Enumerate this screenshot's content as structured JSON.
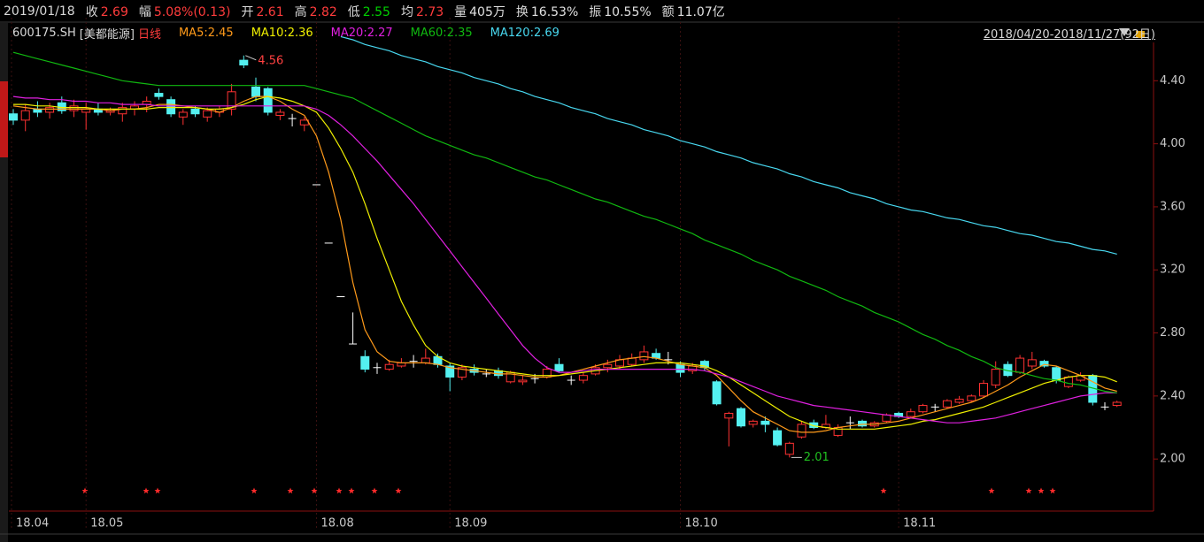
{
  "header": {
    "date": "2019/01/18",
    "items": [
      {
        "label": "收",
        "value": "2.69",
        "color": "#ff3c3c"
      },
      {
        "label": "幅",
        "value": "5.08%(0.13)",
        "color": "#ff3c3c"
      },
      {
        "label": "开",
        "value": "2.61",
        "color": "#ff3c3c"
      },
      {
        "label": "高",
        "value": "2.82",
        "color": "#ff3c3c"
      },
      {
        "label": "低",
        "value": "2.55",
        "color": "#00d000"
      },
      {
        "label": "均",
        "value": "2.73",
        "color": "#ff3c3c"
      },
      {
        "label": "量",
        "value": "405万",
        "color": "#e0e0e0"
      },
      {
        "label": "换",
        "value": "16.53%",
        "color": "#e0e0e0"
      },
      {
        "label": "振",
        "value": "10.55%",
        "color": "#e0e0e0"
      },
      {
        "label": "额",
        "value": "11.07亿",
        "color": "#e0e0e0"
      }
    ]
  },
  "chart_data": {
    "type": "candlestick",
    "code": "600175.SH",
    "name": "[美都能源]",
    "period": "日线",
    "range": "2018/04/20-2018/11/27(92日)",
    "up_color": "#ff3232",
    "down_color": "#54f0f0",
    "flat_color": "#ffffff",
    "high_label": 4.56,
    "low_label": 2.01,
    "categories": [
      "18.04",
      null,
      null,
      null,
      null,
      null,
      "18.05",
      null,
      null,
      null,
      null,
      null,
      null,
      null,
      null,
      null,
      null,
      null,
      null,
      null,
      null,
      null,
      null,
      null,
      null,
      "18.08",
      null,
      null,
      null,
      null,
      null,
      null,
      null,
      null,
      null,
      null,
      "18.09",
      null,
      null,
      null,
      null,
      null,
      null,
      null,
      null,
      null,
      null,
      null,
      null,
      null,
      null,
      null,
      null,
      null,
      null,
      "18.10",
      null,
      null,
      null,
      null,
      null,
      null,
      null,
      null,
      null,
      null,
      null,
      null,
      null,
      null,
      null,
      null,
      null,
      "18.11",
      null,
      null,
      null,
      null,
      null,
      null,
      null,
      null,
      null,
      null,
      null,
      null,
      null,
      null,
      null,
      null,
      null,
      null
    ],
    "open": [
      4.19,
      4.15,
      4.22,
      4.2,
      4.26,
      4.21,
      4.2,
      4.22,
      4.2,
      4.19,
      4.22,
      4.25,
      4.32,
      4.28,
      4.17,
      4.22,
      4.17,
      4.2,
      4.22,
      4.53,
      4.36,
      4.35,
      4.18,
      4.16,
      4.12,
      3.74,
      3.37,
      3.03,
      2.73,
      2.65,
      2.58,
      2.57,
      2.59,
      2.62,
      2.61,
      2.65,
      2.59,
      2.52,
      2.57,
      2.54,
      2.56,
      2.49,
      2.49,
      2.51,
      2.52,
      2.6,
      2.5,
      2.5,
      2.54,
      2.58,
      2.59,
      2.6,
      2.63,
      2.67,
      2.63,
      2.6,
      2.56,
      2.62,
      2.49,
      2.26,
      2.32,
      2.22,
      2.24,
      2.18,
      2.03,
      2.14,
      2.23,
      2.2,
      2.15,
      2.23,
      2.24,
      2.21,
      2.24,
      2.29,
      2.27,
      2.3,
      2.33,
      2.33,
      2.36,
      2.37,
      2.4,
      2.47,
      2.6,
      2.55,
      2.59,
      2.62,
      2.58,
      2.46,
      2.5,
      2.53,
      2.33,
      2.34
    ],
    "high": [
      4.22,
      4.25,
      4.27,
      4.26,
      4.3,
      4.28,
      4.26,
      4.26,
      4.23,
      4.26,
      4.27,
      4.3,
      4.35,
      4.3,
      4.22,
      4.24,
      4.23,
      4.24,
      4.38,
      4.56,
      4.42,
      4.36,
      4.22,
      4.19,
      4.17,
      3.74,
      3.37,
      3.03,
      2.93,
      2.69,
      2.61,
      2.63,
      2.64,
      2.66,
      2.7,
      2.67,
      2.61,
      2.6,
      2.6,
      2.57,
      2.58,
      2.56,
      2.53,
      2.54,
      2.59,
      2.64,
      2.53,
      2.55,
      2.6,
      2.63,
      2.66,
      2.67,
      2.72,
      2.7,
      2.68,
      2.62,
      2.61,
      2.63,
      2.5,
      2.3,
      2.33,
      2.25,
      2.27,
      2.2,
      2.11,
      2.24,
      2.25,
      2.28,
      2.22,
      2.27,
      2.25,
      2.24,
      2.29,
      2.3,
      2.32,
      2.35,
      2.35,
      2.38,
      2.4,
      2.41,
      2.5,
      2.62,
      2.62,
      2.66,
      2.68,
      2.63,
      2.59,
      2.53,
      2.55,
      2.54,
      2.36,
      2.37
    ],
    "low": [
      4.12,
      4.08,
      4.17,
      4.16,
      4.19,
      4.17,
      4.09,
      4.18,
      4.18,
      4.14,
      4.18,
      4.2,
      4.28,
      4.17,
      4.12,
      4.17,
      4.14,
      4.17,
      4.18,
      4.48,
      4.27,
      4.18,
      4.15,
      4.11,
      4.08,
      3.74,
      3.37,
      3.03,
      2.73,
      2.55,
      2.54,
      2.56,
      2.58,
      2.58,
      2.6,
      2.58,
      2.43,
      2.5,
      2.53,
      2.52,
      2.51,
      2.48,
      2.47,
      2.48,
      2.51,
      2.55,
      2.47,
      2.48,
      2.53,
      2.55,
      2.57,
      2.59,
      2.61,
      2.63,
      2.6,
      2.52,
      2.54,
      2.56,
      2.34,
      2.08,
      2.2,
      2.2,
      2.17,
      2.08,
      2.01,
      2.13,
      2.19,
      2.19,
      2.14,
      2.19,
      2.2,
      2.2,
      2.23,
      2.26,
      2.26,
      2.29,
      2.3,
      2.32,
      2.35,
      2.36,
      2.39,
      2.45,
      2.52,
      2.54,
      2.57,
      2.58,
      2.48,
      2.45,
      2.49,
      2.34,
      2.31,
      2.33
    ],
    "close": [
      4.15,
      4.21,
      4.2,
      4.23,
      4.21,
      4.24,
      4.22,
      4.2,
      4.21,
      4.23,
      4.24,
      4.27,
      4.3,
      4.19,
      4.2,
      4.19,
      4.21,
      4.22,
      4.33,
      4.5,
      4.3,
      4.2,
      4.2,
      4.16,
      4.15,
      3.74,
      3.37,
      3.03,
      2.73,
      2.57,
      2.58,
      2.6,
      2.61,
      2.62,
      2.64,
      2.6,
      2.52,
      2.58,
      2.55,
      2.54,
      2.53,
      2.55,
      2.5,
      2.51,
      2.57,
      2.56,
      2.5,
      2.53,
      2.58,
      2.6,
      2.63,
      2.64,
      2.68,
      2.64,
      2.63,
      2.55,
      2.59,
      2.58,
      2.35,
      2.29,
      2.21,
      2.24,
      2.22,
      2.09,
      2.1,
      2.22,
      2.2,
      2.22,
      2.2,
      2.23,
      2.21,
      2.23,
      2.28,
      2.27,
      2.3,
      2.34,
      2.33,
      2.37,
      2.38,
      2.4,
      2.48,
      2.57,
      2.53,
      2.64,
      2.63,
      2.59,
      2.5,
      2.52,
      2.53,
      2.36,
      2.33,
      2.36
    ],
    "series": [
      {
        "name": "MA5:2.45",
        "color": "#ff9a1a",
        "values": [
          4.24,
          4.23,
          4.22,
          4.22,
          4.22,
          4.22,
          4.22,
          4.22,
          4.21,
          4.22,
          4.22,
          4.23,
          4.25,
          4.25,
          4.24,
          4.23,
          4.22,
          4.2,
          4.23,
          4.27,
          4.3,
          4.3,
          4.27,
          4.22,
          4.18,
          4.05,
          3.82,
          3.52,
          3.12,
          2.82,
          2.68,
          2.62,
          2.61,
          2.61,
          2.61,
          2.6,
          2.58,
          2.57,
          2.56,
          2.55,
          2.54,
          2.54,
          2.53,
          2.52,
          2.52,
          2.53,
          2.55,
          2.57,
          2.59,
          2.61,
          2.63,
          2.64,
          2.65,
          2.64,
          2.62,
          2.6,
          2.59,
          2.58,
          2.53,
          2.45,
          2.37,
          2.3,
          2.26,
          2.22,
          2.18,
          2.17,
          2.17,
          2.18,
          2.2,
          2.21,
          2.22,
          2.22,
          2.23,
          2.24,
          2.26,
          2.28,
          2.3,
          2.32,
          2.34,
          2.36,
          2.39,
          2.43,
          2.47,
          2.52,
          2.56,
          2.6,
          2.59,
          2.56,
          2.53,
          2.49,
          2.45,
          2.43
        ]
      },
      {
        "name": "MA10:2.36",
        "color": "#f0f000",
        "values": [
          4.25,
          4.25,
          4.24,
          4.24,
          4.23,
          4.23,
          4.23,
          4.22,
          4.22,
          4.22,
          4.22,
          4.22,
          4.23,
          4.23,
          4.23,
          4.23,
          4.22,
          4.22,
          4.23,
          4.25,
          4.28,
          4.3,
          4.29,
          4.27,
          4.24,
          4.2,
          4.1,
          3.97,
          3.82,
          3.62,
          3.4,
          3.2,
          3.0,
          2.85,
          2.72,
          2.65,
          2.61,
          2.59,
          2.58,
          2.57,
          2.56,
          2.55,
          2.54,
          2.53,
          2.53,
          2.53,
          2.54,
          2.55,
          2.56,
          2.57,
          2.58,
          2.59,
          2.6,
          2.61,
          2.61,
          2.61,
          2.6,
          2.59,
          2.56,
          2.52,
          2.47,
          2.42,
          2.37,
          2.32,
          2.27,
          2.24,
          2.21,
          2.2,
          2.19,
          2.19,
          2.19,
          2.19,
          2.2,
          2.21,
          2.22,
          2.24,
          2.25,
          2.27,
          2.29,
          2.31,
          2.33,
          2.36,
          2.39,
          2.42,
          2.45,
          2.48,
          2.5,
          2.52,
          2.53,
          2.53,
          2.52,
          2.49
        ]
      },
      {
        "name": "MA20:2.27",
        "color": "#e020e0",
        "values": [
          4.3,
          4.29,
          4.29,
          4.28,
          4.28,
          4.27,
          4.27,
          4.26,
          4.26,
          4.25,
          4.25,
          4.25,
          4.24,
          4.24,
          4.24,
          4.24,
          4.24,
          4.24,
          4.24,
          4.24,
          4.24,
          4.24,
          4.24,
          4.24,
          4.24,
          4.22,
          4.18,
          4.12,
          4.05,
          3.97,
          3.89,
          3.8,
          3.71,
          3.62,
          3.52,
          3.42,
          3.32,
          3.22,
          3.12,
          3.02,
          2.92,
          2.82,
          2.72,
          2.64,
          2.58,
          2.55,
          2.55,
          2.56,
          2.57,
          2.57,
          2.57,
          2.57,
          2.57,
          2.57,
          2.57,
          2.57,
          2.57,
          2.56,
          2.54,
          2.52,
          2.49,
          2.46,
          2.43,
          2.4,
          2.38,
          2.36,
          2.34,
          2.33,
          2.32,
          2.31,
          2.3,
          2.29,
          2.28,
          2.27,
          2.26,
          2.25,
          2.24,
          2.23,
          2.23,
          2.24,
          2.25,
          2.26,
          2.28,
          2.3,
          2.32,
          2.34,
          2.36,
          2.38,
          2.4,
          2.41,
          2.42,
          2.42
        ]
      },
      {
        "name": "MA60:2.35",
        "color": "#10b810",
        "values": [
          4.58,
          4.56,
          4.54,
          4.52,
          4.5,
          4.48,
          4.46,
          4.44,
          4.42,
          4.4,
          4.39,
          4.38,
          4.37,
          4.37,
          4.37,
          4.37,
          4.37,
          4.37,
          4.37,
          4.37,
          4.37,
          4.37,
          4.37,
          4.37,
          4.37,
          4.35,
          4.33,
          4.31,
          4.29,
          4.25,
          4.21,
          4.17,
          4.13,
          4.09,
          4.05,
          4.02,
          3.99,
          3.96,
          3.93,
          3.91,
          3.88,
          3.85,
          3.82,
          3.79,
          3.77,
          3.74,
          3.71,
          3.68,
          3.65,
          3.63,
          3.6,
          3.57,
          3.54,
          3.52,
          3.49,
          3.46,
          3.43,
          3.39,
          3.36,
          3.33,
          3.3,
          3.26,
          3.23,
          3.2,
          3.16,
          3.13,
          3.1,
          3.07,
          3.03,
          3.0,
          2.97,
          2.93,
          2.9,
          2.87,
          2.83,
          2.79,
          2.76,
          2.72,
          2.69,
          2.65,
          2.62,
          2.58,
          2.56,
          2.55,
          2.53,
          2.51,
          2.5,
          2.48,
          2.47,
          2.45,
          2.43,
          2.42
        ]
      },
      {
        "name": "MA120:2.69",
        "color": "#48d8f0",
        "values": [
          null,
          null,
          null,
          null,
          null,
          null,
          null,
          null,
          null,
          null,
          null,
          null,
          null,
          null,
          null,
          null,
          null,
          null,
          null,
          null,
          null,
          null,
          null,
          null,
          null,
          null,
          null,
          4.68,
          4.66,
          4.63,
          4.61,
          4.59,
          4.56,
          4.54,
          4.52,
          4.49,
          4.47,
          4.45,
          4.42,
          4.4,
          4.38,
          4.35,
          4.33,
          4.3,
          4.28,
          4.26,
          4.23,
          4.21,
          4.19,
          4.16,
          4.14,
          4.12,
          4.09,
          4.07,
          4.05,
          4.02,
          4.0,
          3.98,
          3.95,
          3.93,
          3.91,
          3.88,
          3.86,
          3.84,
          3.81,
          3.79,
          3.76,
          3.74,
          3.72,
          3.69,
          3.67,
          3.65,
          3.62,
          3.6,
          3.58,
          3.57,
          3.55,
          3.53,
          3.52,
          3.5,
          3.48,
          3.47,
          3.45,
          3.43,
          3.42,
          3.4,
          3.38,
          3.37,
          3.35,
          3.33,
          3.32,
          3.3
        ]
      }
    ],
    "ylim": [
      1.67,
      4.8
    ],
    "yticks": [
      {
        "value": 2.0,
        "label": "2.00"
      },
      {
        "value": 2.4,
        "label": "2.40"
      },
      {
        "value": 2.8,
        "label": "2.80"
      },
      {
        "value": 3.2,
        "label": "3.20"
      },
      {
        "value": 3.6,
        "label": "3.60"
      },
      {
        "value": 4.0,
        "label": "4.00"
      },
      {
        "value": 4.4,
        "label": "4.40"
      }
    ]
  }
}
